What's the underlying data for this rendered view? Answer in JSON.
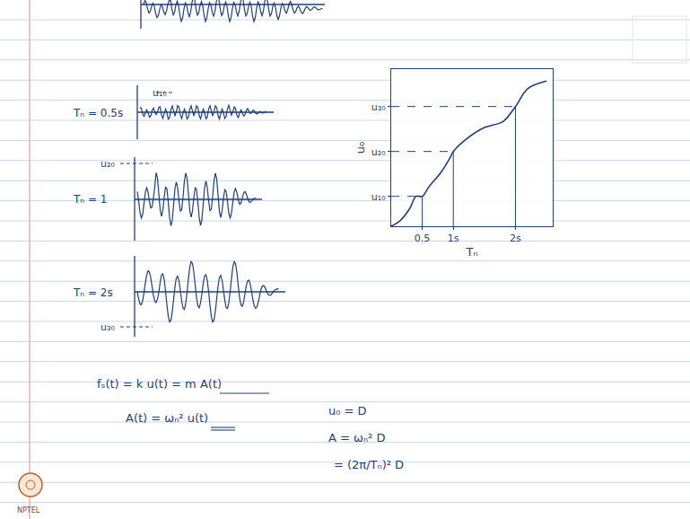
{
  "time_histories": [
    {
      "label": "Tₙ = 0.5s",
      "peak_label": "u₁₀"
    },
    {
      "label": "Tₙ = 1",
      "peak_label": "u₂₀"
    },
    {
      "label": "Tₙ = 2s",
      "peak_label": "u₃₀"
    }
  ],
  "chart_data": {
    "type": "line",
    "x_label": "Tₙ",
    "y_label": "u₀",
    "x": [
      0,
      0.15,
      0.3,
      0.4,
      0.5,
      0.6,
      0.8,
      0.95,
      1.0,
      1.2,
      1.5,
      1.8,
      2.0,
      2.2,
      2.5
    ],
    "values": [
      0,
      0.4,
      1.2,
      2.0,
      2.0,
      2.6,
      3.6,
      4.6,
      5.0,
      5.8,
      6.6,
      7.0,
      8.0,
      9.2,
      9.7
    ],
    "color": "#1f3f7a",
    "xlim": [
      0,
      2.6
    ],
    "ylim": [
      0,
      10.5
    ],
    "xticks": [
      0.5,
      {
        "value": 1,
        "label": "1s"
      },
      {
        "value": 2,
        "label": "2s"
      }
    ],
    "yticks": [
      {
        "value": 2,
        "label": "u₁₀"
      },
      {
        "value": 5,
        "label": "u₂₀"
      },
      {
        "value": 8,
        "label": "u₃₀"
      }
    ],
    "grid": false
  },
  "equations": [
    "fₛ(t) = k u(t) = m A(t)",
    "A(t) = ωₙ² u(t)"
  ],
  "spectral_relations": [
    "u₀ = D",
    "A = ωₙ² D",
    "= (2π/Tₙ)² D"
  ],
  "logo": "NPTEL"
}
